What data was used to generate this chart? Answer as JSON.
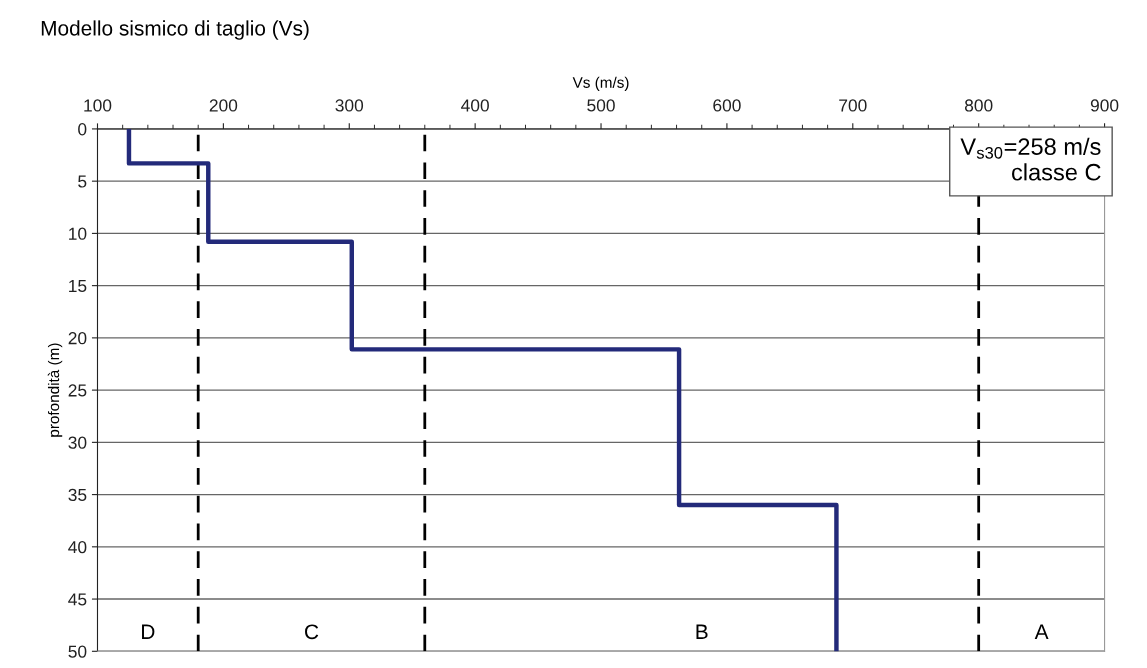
{
  "chart_data": {
    "type": "line",
    "title": "Modello sismico di taglio (Vs)",
    "xlabel": "Vs (m/s)",
    "ylabel": "profondità (m)",
    "xlim": [
      100,
      900
    ],
    "xticks": [
      100,
      200,
      300,
      400,
      500,
      600,
      700,
      800,
      900
    ],
    "ylim": [
      50,
      0
    ],
    "yticks": [
      0,
      5,
      10,
      15,
      20,
      25,
      30,
      35,
      40,
      45,
      50
    ],
    "grid": "y",
    "legend": false,
    "marker": "none",
    "line_style": "solid",
    "series": [
      {
        "color": "#232a7a",
        "x": [
          125,
          125,
          188,
          188,
          302,
          302,
          562,
          562,
          687,
          687
        ],
        "values": [
          0,
          3.3,
          3.3,
          10.8,
          10.8,
          21.1,
          21.1,
          36,
          36,
          50
        ]
      }
    ],
    "ref_lines": [
      {
        "axis": "x",
        "value": 180,
        "color": "#000000",
        "line_style": "dashed"
      },
      {
        "axis": "x",
        "value": 360,
        "color": "#000000",
        "line_style": "dashed"
      },
      {
        "axis": "x",
        "value": 800,
        "color": "#000000",
        "line_style": "dashed"
      }
    ],
    "annotations": [
      "V$_{s30}$=258 m/s\nclasse C",
      "D",
      "C",
      "B",
      "A"
    ]
  }
}
